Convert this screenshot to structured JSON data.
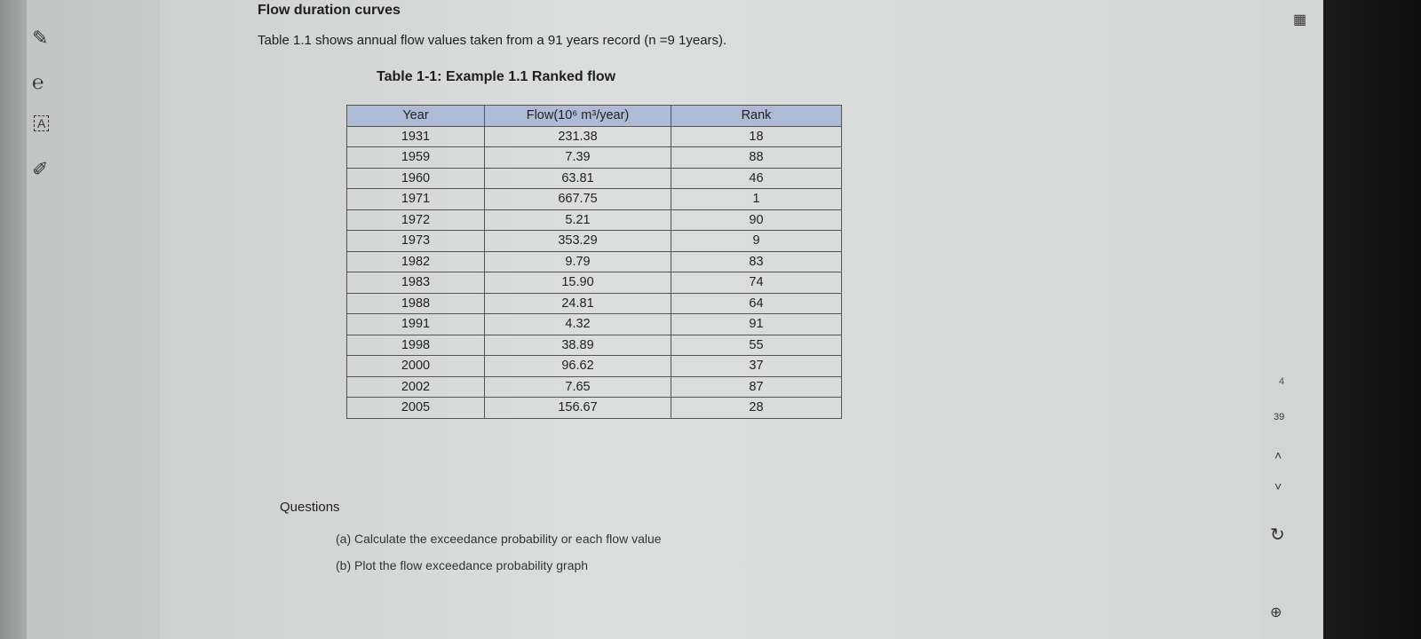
{
  "document": {
    "heading": "Flow duration curves",
    "intro": "Table 1.1 shows annual flow values taken from a 91 years record (n =9 1years).",
    "caption": "Table 1-1: Example 1.1 Ranked flow"
  },
  "table": {
    "columns": [
      "Year",
      "Flow(10⁶ m³/year)",
      "Rank"
    ],
    "rows": [
      [
        "1931",
        "231.38",
        "18"
      ],
      [
        "1959",
        "7.39",
        "88"
      ],
      [
        "1960",
        "63.81",
        "46"
      ],
      [
        "1971",
        "667.75",
        "1"
      ],
      [
        "1972",
        "5.21",
        "90"
      ],
      [
        "1973",
        "353.29",
        "9"
      ],
      [
        "1982",
        "9.79",
        "83"
      ],
      [
        "1983",
        "15.90",
        "74"
      ],
      [
        "1988",
        "24.81",
        "64"
      ],
      [
        "1991",
        "4.32",
        "91"
      ],
      [
        "1998",
        "38.89",
        "55"
      ],
      [
        "2000",
        "96.62",
        "37"
      ],
      [
        "2002",
        "7.65",
        "87"
      ],
      [
        "2005",
        "156.67",
        "28"
      ]
    ]
  },
  "questions": {
    "title": "Questions",
    "items": [
      "(a)  Calculate the exceedance probability or each flow value",
      "(b)  Plot the flow exceedance probability graph"
    ]
  },
  "pager": {
    "current": "4",
    "total": "39"
  }
}
